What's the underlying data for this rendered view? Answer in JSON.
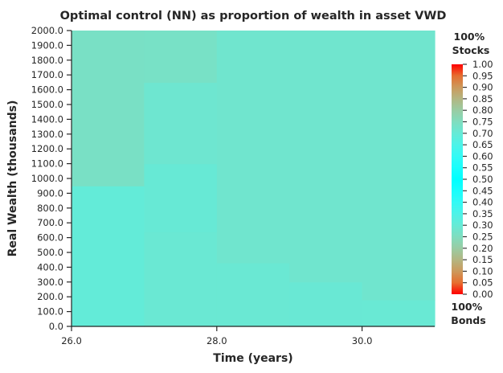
{
  "chart_data": {
    "type": "heatmap",
    "title": "Optimal control (NN) as proportion of wealth in asset VWD",
    "xlabel": "Time (years)",
    "ylabel": "Real Wealth (thousands)",
    "xlim": [
      26.0,
      31.0
    ],
    "ylim": [
      0.0,
      2000.0
    ],
    "x_ticks": [
      "26.0",
      "28.0",
      "30.0"
    ],
    "y_ticks": [
      "0.0",
      "100.0",
      "200.0",
      "300.0",
      "400.0",
      "500.0",
      "600.0",
      "700.0",
      "800.0",
      "900.0",
      "1000.0",
      "1100.0",
      "1200.0",
      "1300.0",
      "1400.0",
      "1500.0",
      "1600.0",
      "1700.0",
      "1800.0",
      "1900.0",
      "2000.0"
    ],
    "colormap": "rainbow",
    "colorbar": {
      "min": 0.0,
      "max": 1.0,
      "ticks": [
        "0.00",
        "0.05",
        "0.10",
        "0.15",
        "0.20",
        "0.25",
        "0.30",
        "0.35",
        "0.40",
        "0.45",
        "0.50",
        "0.55",
        "0.60",
        "0.65",
        "0.70",
        "0.75",
        "0.80",
        "0.85",
        "0.90",
        "0.95",
        "1.00"
      ],
      "top_label": [
        "100%",
        "Stocks"
      ],
      "bottom_label": [
        "100%",
        "Bonds"
      ]
    },
    "regions": [
      {
        "t0": 26.0,
        "t1": 27.0,
        "w0": 0,
        "w1": 950,
        "value": 0.305
      },
      {
        "t0": 26.0,
        "t1": 27.0,
        "w0": 950,
        "w1": 2000,
        "value": 0.262
      },
      {
        "t0": 27.0,
        "t1": 28.0,
        "w0": 0,
        "w1": 640,
        "value": 0.292
      },
      {
        "t0": 27.0,
        "t1": 28.0,
        "w0": 640,
        "w1": 1100,
        "value": 0.298
      },
      {
        "t0": 27.0,
        "t1": 28.0,
        "w0": 1100,
        "w1": 1650,
        "value": 0.285
      },
      {
        "t0": 27.0,
        "t1": 28.0,
        "w0": 1650,
        "w1": 2000,
        "value": 0.264
      },
      {
        "t0": 28.0,
        "t1": 29.0,
        "w0": 0,
        "w1": 430,
        "value": 0.292
      },
      {
        "t0": 28.0,
        "t1": 29.0,
        "w0": 430,
        "w1": 2000,
        "value": 0.28
      },
      {
        "t0": 29.0,
        "t1": 30.0,
        "w0": 0,
        "w1": 300,
        "value": 0.294
      },
      {
        "t0": 29.0,
        "t1": 30.0,
        "w0": 300,
        "w1": 2000,
        "value": 0.28
      },
      {
        "t0": 30.0,
        "t1": 31.0,
        "w0": 0,
        "w1": 180,
        "value": 0.295
      },
      {
        "t0": 30.0,
        "t1": 31.0,
        "w0": 180,
        "w1": 2000,
        "value": 0.281
      }
    ]
  }
}
